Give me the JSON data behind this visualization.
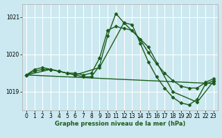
{
  "title": "Graphe pression niveau de la mer (hPa)",
  "bg_color": "#cce8f0",
  "grid_color": "#ffffff",
  "line_color": "#1a5c1a",
  "xlim": [
    -0.5,
    23.5
  ],
  "ylim": [
    1018.5,
    1021.35
  ],
  "yticks": [
    1019,
    1020,
    1021
  ],
  "ytick_labels": [
    "1019",
    "1020",
    "1021"
  ],
  "xticks": [
    0,
    1,
    2,
    3,
    4,
    5,
    6,
    7,
    8,
    9,
    10,
    11,
    12,
    13,
    14,
    15,
    16,
    17,
    18,
    19,
    20,
    21,
    22,
    23
  ],
  "series": [
    {
      "x": [
        0,
        1,
        2,
        3,
        4,
        5,
        6,
        7,
        8,
        9,
        10,
        11,
        12,
        13,
        14,
        15,
        16,
        17,
        18,
        19,
        20,
        21,
        22,
        23
      ],
      "y": [
        1019.45,
        1019.6,
        1019.65,
        1019.6,
        1019.55,
        1019.5,
        1019.45,
        1019.4,
        1019.4,
        1019.7,
        1020.5,
        1021.1,
        1020.85,
        1020.8,
        1020.3,
        1019.8,
        1019.4,
        1019.1,
        1018.85,
        1018.7,
        1018.65,
        1018.8,
        1019.2,
        1019.3
      ],
      "marker": "D",
      "markersize": 2.5,
      "linewidth": 1.0
    },
    {
      "x": [
        0,
        1,
        2,
        3,
        4,
        5,
        6,
        7,
        8,
        9,
        10,
        11,
        12,
        13,
        14,
        15,
        16,
        17,
        18,
        19,
        20,
        21,
        22,
        23
      ],
      "y": [
        1019.45,
        1019.55,
        1019.6,
        1019.6,
        1019.55,
        1019.5,
        1019.5,
        1019.45,
        1019.5,
        1019.9,
        1020.65,
        1020.75,
        1020.7,
        1020.65,
        1020.4,
        1020.05,
        1019.75,
        1019.5,
        1019.3,
        1019.15,
        1019.1,
        1019.1,
        1019.25,
        1019.35
      ],
      "marker": "D",
      "markersize": 2.5,
      "linewidth": 1.0
    },
    {
      "x": [
        0,
        3,
        6,
        9,
        12,
        15,
        18,
        21,
        23
      ],
      "y": [
        1019.45,
        1019.6,
        1019.45,
        1019.65,
        1020.85,
        1020.2,
        1019.0,
        1018.72,
        1019.28
      ],
      "marker": "D",
      "markersize": 2.5,
      "linewidth": 1.0
    },
    {
      "x": [
        0,
        23
      ],
      "y": [
        1019.45,
        1019.22
      ],
      "marker": "D",
      "markersize": 2.5,
      "linewidth": 1.0
    }
  ],
  "title_fontsize": 6.0,
  "tick_fontsize": 5.5,
  "title_color": "#1a5c1a",
  "spine_color": "#aaaaaa"
}
